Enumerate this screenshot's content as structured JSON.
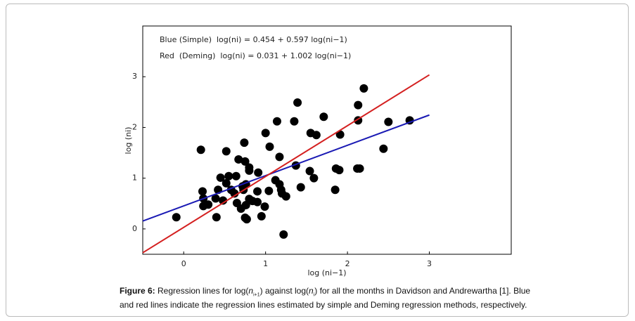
{
  "chart_data": {
    "type": "scatter",
    "xlabel": "log (ni−1)",
    "ylabel": "log (ni)",
    "annotations": [
      "Blue (Simple)  log(ni) = 0.454 + 0.597 log(ni−1)",
      "Red  (Deming)  log(ni) = 0.031 + 1.002 log(ni−1)"
    ],
    "xlim": [
      -0.5,
      4
    ],
    "ylim": [
      -0.5,
      4
    ],
    "xticks": [
      0,
      1,
      2,
      3
    ],
    "yticks": [
      0,
      1,
      2,
      3
    ],
    "color": "#000000",
    "x": [
      -0.09,
      0.21,
      0.23,
      0.24,
      0.24,
      0.3,
      0.39,
      0.4,
      0.42,
      0.45,
      0.48,
      0.52,
      0.52,
      0.55,
      0.58,
      0.62,
      0.64,
      0.65,
      0.67,
      0.7,
      0.72,
      0.73,
      0.74,
      0.75,
      0.76,
      0.75,
      0.77,
      0.76,
      0.8,
      0.8,
      0.8,
      0.84,
      0.91,
      0.9,
      0.9,
      0.95,
      0.99,
      1.0,
      1.04,
      1.05,
      1.12,
      1.14,
      1.17,
      1.17,
      1.19,
      1.2,
      1.22,
      1.25,
      1.35,
      1.37,
      1.39,
      1.43,
      1.54,
      1.55,
      1.59,
      1.62,
      1.71,
      1.85,
      1.86,
      1.9,
      1.91,
      2.12,
      2.15,
      2.13,
      2.13,
      2.2,
      2.44,
      2.5,
      2.76
    ],
    "values": [
      0.23,
      1.56,
      0.74,
      0.6,
      0.45,
      0.48,
      0.6,
      0.23,
      0.77,
      1.01,
      0.56,
      1.53,
      0.9,
      1.04,
      0.77,
      0.7,
      1.04,
      0.51,
      1.37,
      0.4,
      0.84,
      0.77,
      1.7,
      1.33,
      0.88,
      0.22,
      0.19,
      0.47,
      0.59,
      1.21,
      1.15,
      0.55,
      1.11,
      0.74,
      0.53,
      0.25,
      0.44,
      1.89,
      0.75,
      1.62,
      0.96,
      2.12,
      1.42,
      0.88,
      0.77,
      0.7,
      -0.11,
      0.64,
      2.12,
      1.25,
      2.49,
      0.82,
      1.14,
      1.89,
      1.0,
      1.85,
      2.21,
      0.77,
      1.19,
      1.16,
      1.86,
      1.19,
      1.19,
      2.44,
      2.14,
      2.77,
      1.58,
      2.11,
      2.14
    ],
    "lines": [
      {
        "color": "#1a1ab4",
        "x": [
          -0.5,
          3
        ],
        "values": [
          0.155,
          2.245
        ]
      },
      {
        "color": "#d42020",
        "x": [
          -0.5,
          3
        ],
        "values": [
          -0.47,
          3.037
        ]
      }
    ]
  },
  "caption": {
    "label": "Figure 6:",
    "parts": [
      " Regression lines for log(",
      "n",
      "i+1",
      ") against log(",
      "n",
      "i",
      ") for all the months in Davidson and Andrewartha [1]. Blue and red lines indicate the regression lines estimated by simple and Deming regression methods, respectively."
    ]
  }
}
